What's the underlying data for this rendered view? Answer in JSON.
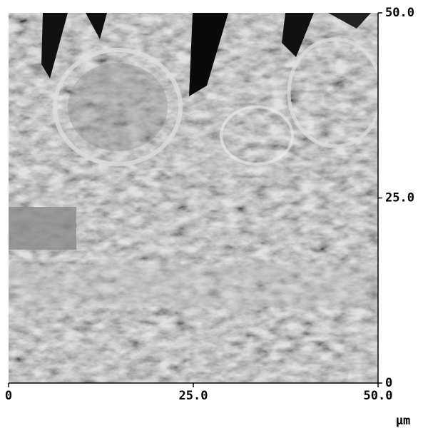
{
  "chart_data": {
    "type": "image",
    "xlim": [
      0,
      50
    ],
    "ylim": [
      0,
      50
    ],
    "xticks": [
      0,
      {
        "value": 25,
        "label": "25.0"
      },
      {
        "value": 50,
        "label": "50.0"
      }
    ],
    "yticks": [
      0,
      {
        "value": 25,
        "label": "25.0"
      },
      {
        "value": 50,
        "label": "50.0"
      }
    ],
    "unit": "μm"
  }
}
